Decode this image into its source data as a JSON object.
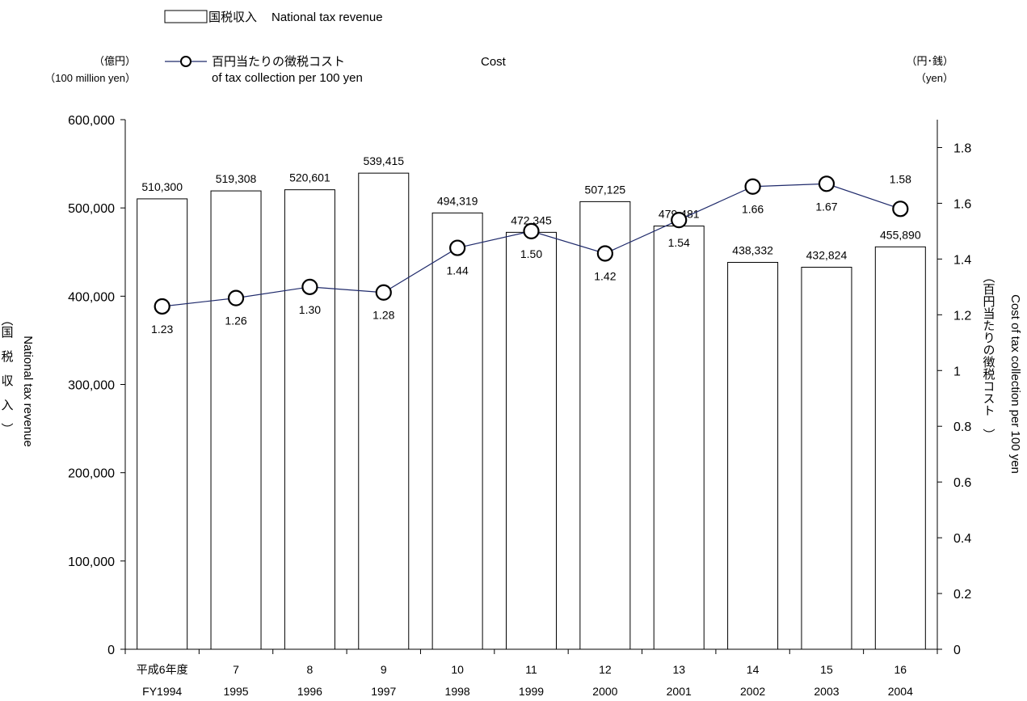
{
  "chart_data": {
    "type": "bar",
    "categories": [
      "平成6年度",
      "7",
      "8",
      "9",
      "10",
      "11",
      "12",
      "13",
      "14",
      "15",
      "16"
    ],
    "categories_en": [
      "FY1994",
      "1995",
      "1996",
      "1997",
      "1998",
      "1999",
      "2000",
      "2001",
      "2002",
      "2003",
      "2004"
    ],
    "series": [
      {
        "name": "国税収入 National tax revenue",
        "type": "bar",
        "axis": "left",
        "values": [
          510300,
          519308,
          520601,
          539415,
          494319,
          472345,
          507125,
          479481,
          438332,
          432824,
          455890
        ],
        "labels": [
          "510,300",
          "519,308",
          "520,601",
          "539,415",
          "494,319",
          "472,345",
          "507,125",
          "479,481",
          "438,332",
          "432,824",
          "455,890"
        ]
      },
      {
        "name": "百円当たりの徴税コスト Cost of tax collection per 100 yen",
        "type": "line",
        "axis": "right",
        "values": [
          1.23,
          1.26,
          1.3,
          1.28,
          1.44,
          1.5,
          1.42,
          1.54,
          1.66,
          1.67,
          1.58
        ],
        "labels": [
          "1.23",
          "1.26",
          "1.30",
          "1.28",
          "1.44",
          "1.50",
          "1.42",
          "1.54",
          "1.66",
          "1.67",
          "1.58"
        ]
      }
    ],
    "y_left": {
      "range": [
        0,
        600000
      ],
      "ticks": [
        0,
        100000,
        200000,
        300000,
        400000,
        500000,
        600000
      ],
      "tick_labels": [
        "0",
        "100,000",
        "200,000",
        "300,000",
        "400,000",
        "500,000",
        "600,000"
      ],
      "unit_jp": "（億円）",
      "unit_en": "（100 million yen）",
      "title_jp": "（国　税　収　入　）",
      "title_en": "National tax revenue"
    },
    "y_right": {
      "range": [
        0,
        1.9
      ],
      "ticks": [
        0,
        0.2,
        0.4,
        0.6,
        0.8,
        1.0,
        1.2,
        1.4,
        1.6,
        1.8
      ],
      "tick_labels": [
        "0",
        "0.2",
        "0.4",
        "0.6",
        "0.8",
        "1",
        "1.2",
        "1.4",
        "1.6",
        "1.8"
      ],
      "unit_jp": "（円･銭）",
      "unit_en": "（yen）",
      "title_jp": "（百円当たりの徴税コスト　）",
      "title_en": "Cost  of  tax collection per 100 yen"
    },
    "legend": {
      "bar_jp": "国税収入",
      "bar_en": "National tax revenue",
      "line_jp": "百円当たりの徴税コスト",
      "line_en_1": "Cost",
      "line_en_2": "of tax collection per 100 yen",
      "placement": "top-left"
    },
    "grid": false
  },
  "colors": {
    "bar_fill": "#ffffff",
    "bar_stroke": "#000000",
    "line": "#1f2a6b",
    "marker_fill": "#ffffff",
    "marker_stroke": "#000000"
  }
}
